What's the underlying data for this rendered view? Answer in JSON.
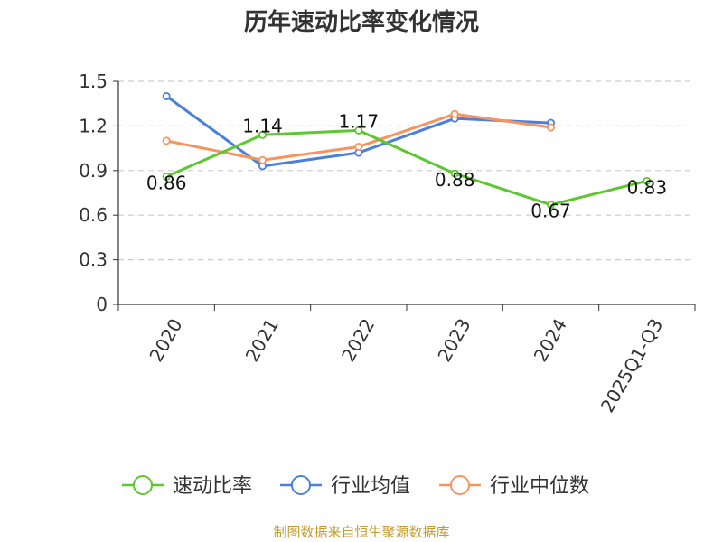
{
  "chart_data": {
    "type": "line",
    "title": "历年速动比率变化情况",
    "categories": [
      "2020",
      "2021",
      "2022",
      "2023",
      "2024",
      "2025Q1-Q3"
    ],
    "ylim": [
      0,
      1.5
    ],
    "yticks": [
      "0",
      "0.3",
      "0.6",
      "0.9",
      "1.2",
      "1.5"
    ],
    "grid": true,
    "legend_position": "bottom",
    "series": [
      {
        "name": "速动比率",
        "color": "#5cc72e",
        "values": [
          0.86,
          1.14,
          1.17,
          0.88,
          0.67,
          0.83
        ],
        "labels": [
          "0.86",
          "1.14",
          "1.17",
          "0.88",
          "0.67",
          "0.83"
        ]
      },
      {
        "name": "行业均值",
        "color": "#4a7fdb",
        "values": [
          1.4,
          0.93,
          1.02,
          1.25,
          1.22,
          null
        ]
      },
      {
        "name": "行业中位数",
        "color": "#f7935e",
        "values": [
          1.1,
          0.97,
          1.06,
          1.28,
          1.19,
          null
        ]
      }
    ]
  },
  "source": {
    "text": "制图数据来自恒生聚源数据库",
    "color": "#c39b2e"
  }
}
